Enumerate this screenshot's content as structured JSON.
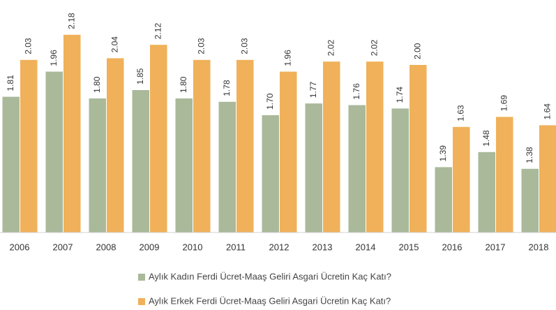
{
  "chart_data": {
    "type": "bar",
    "categories": [
      "2006",
      "2007",
      "2008",
      "2009",
      "2010",
      "2011",
      "2012",
      "2013",
      "2014",
      "2015",
      "2016",
      "2017",
      "2018"
    ],
    "series": [
      {
        "name": "Aylık Kadın Ferdi Ücret-Maaş Geliri Asgari Ücretin Kaç Katı?",
        "color": "#a9b99a",
        "values": [
          1.81,
          1.96,
          1.8,
          1.85,
          1.8,
          1.78,
          1.7,
          1.77,
          1.76,
          1.74,
          1.39,
          1.48,
          1.38
        ],
        "value_labels": [
          "1.81",
          "1.96",
          "1.80",
          "1.85",
          "1.80",
          "1.78",
          "1.70",
          "1.77",
          "1.76",
          "1.74",
          "1.39",
          "1.48",
          "1.38"
        ]
      },
      {
        "name": "Aylık Erkek Ferdi Ücret-Maaş Geliri Asgari Ücretin Kaç Katı?",
        "color": "#f0b15a",
        "values": [
          2.03,
          2.18,
          2.04,
          2.12,
          2.03,
          2.03,
          1.96,
          2.02,
          2.02,
          2.0,
          1.63,
          1.69,
          1.64
        ],
        "value_labels": [
          "2.03",
          "2.18",
          "2.04",
          "2.12",
          "2.03",
          "2.03",
          "1.96",
          "2.02",
          "2.02",
          "2.00",
          "1.63",
          "1.69",
          "1.64"
        ]
      }
    ],
    "ylim": [
      1,
      2.2
    ]
  }
}
